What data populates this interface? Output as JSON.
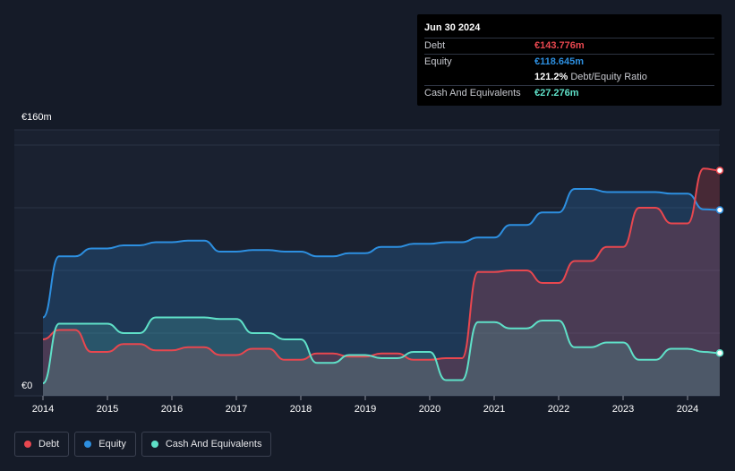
{
  "tooltip": {
    "date": "Jun 30 2024",
    "debt_label": "Debt",
    "debt_value": "€143.776m",
    "equity_label": "Equity",
    "equity_value": "€118.645m",
    "ratio_value": "121.2%",
    "ratio_label": "Debt/Equity Ratio",
    "cash_label": "Cash And Equivalents",
    "cash_value": "€27.276m"
  },
  "legend": [
    {
      "label": "Debt",
      "color": "#e8474f"
    },
    {
      "label": "Equity",
      "color": "#2d8fe0"
    },
    {
      "label": "Cash And Equivalents",
      "color": "#5fe0c8"
    }
  ],
  "colors": {
    "debt": "#e8474f",
    "equity": "#2d8fe0",
    "cash": "#5fe0c8",
    "background": "#151b28"
  },
  "chart_data": {
    "type": "area",
    "y_top_label": "€160m",
    "y_bottom_label": "€0",
    "ylim": [
      0,
      160
    ],
    "xlim": [
      2014.0,
      2024.5
    ],
    "x_tick_labels": [
      "2014",
      "2015",
      "2016",
      "2017",
      "2018",
      "2019",
      "2020",
      "2021",
      "2022",
      "2023",
      "2024"
    ],
    "series": [
      {
        "name": "Debt",
        "x": [
          2014.0,
          2014.25,
          2014.5,
          2014.75,
          2015.0,
          2015.25,
          2015.5,
          2015.75,
          2016.0,
          2016.25,
          2016.5,
          2016.75,
          2017.0,
          2017.25,
          2017.5,
          2017.75,
          2018.0,
          2018.25,
          2018.5,
          2018.75,
          2019.0,
          2019.25,
          2019.5,
          2019.75,
          2020.0,
          2020.25,
          2020.5,
          2020.75,
          2021.0,
          2021.25,
          2021.5,
          2021.75,
          2022.0,
          2022.25,
          2022.5,
          2022.75,
          2023.0,
          2023.25,
          2023.5,
          2023.75,
          2024.0,
          2024.25,
          2024.5
        ],
        "values": [
          36,
          42,
          42,
          28,
          28,
          33,
          33,
          29,
          29,
          31,
          31,
          26,
          26,
          30,
          30,
          23,
          23,
          27,
          27,
          25,
          25,
          27,
          27,
          23,
          23,
          24,
          24,
          79,
          79,
          80,
          80,
          72,
          72,
          86,
          86,
          95,
          95,
          120,
          120,
          110,
          110,
          145,
          143.8
        ]
      },
      {
        "name": "Equity",
        "x": [
          2014.0,
          2014.25,
          2014.5,
          2014.75,
          2015.0,
          2015.25,
          2015.5,
          2015.75,
          2016.0,
          2016.25,
          2016.5,
          2016.75,
          2017.0,
          2017.25,
          2017.5,
          2017.75,
          2018.0,
          2018.25,
          2018.5,
          2018.75,
          2019.0,
          2019.25,
          2019.5,
          2019.75,
          2020.0,
          2020.25,
          2020.5,
          2020.75,
          2021.0,
          2021.25,
          2021.5,
          2021.75,
          2022.0,
          2022.25,
          2022.5,
          2022.75,
          2023.0,
          2023.25,
          2023.5,
          2023.75,
          2024.0,
          2024.25,
          2024.5
        ],
        "values": [
          50,
          89,
          89,
          94,
          94,
          96,
          96,
          98,
          98,
          99,
          99,
          92,
          92,
          93,
          93,
          92,
          92,
          89,
          89,
          91,
          91,
          95,
          95,
          97,
          97,
          98,
          98,
          101,
          101,
          109,
          109,
          117,
          117,
          132,
          132,
          130,
          130,
          130,
          130,
          129,
          129,
          119,
          118.6
        ]
      },
      {
        "name": "Cash And Equivalents",
        "x": [
          2014.0,
          2014.25,
          2014.5,
          2014.75,
          2015.0,
          2015.25,
          2015.5,
          2015.75,
          2016.0,
          2016.25,
          2016.5,
          2016.75,
          2017.0,
          2017.25,
          2017.5,
          2017.75,
          2018.0,
          2018.25,
          2018.5,
          2018.75,
          2019.0,
          2019.25,
          2019.5,
          2019.75,
          2020.0,
          2020.25,
          2020.5,
          2020.75,
          2021.0,
          2021.25,
          2021.5,
          2021.75,
          2022.0,
          2022.25,
          2022.5,
          2022.75,
          2023.0,
          2023.25,
          2023.5,
          2023.75,
          2024.0,
          2024.25,
          2024.5
        ],
        "values": [
          8,
          46,
          46,
          46,
          46,
          40,
          40,
          50,
          50,
          50,
          50,
          49,
          49,
          40,
          40,
          36,
          36,
          21,
          21,
          26,
          26,
          24,
          24,
          28,
          28,
          10,
          10,
          47,
          47,
          43,
          43,
          48,
          48,
          31,
          31,
          34,
          34,
          23,
          23,
          30,
          30,
          28,
          27.3
        ]
      }
    ]
  }
}
